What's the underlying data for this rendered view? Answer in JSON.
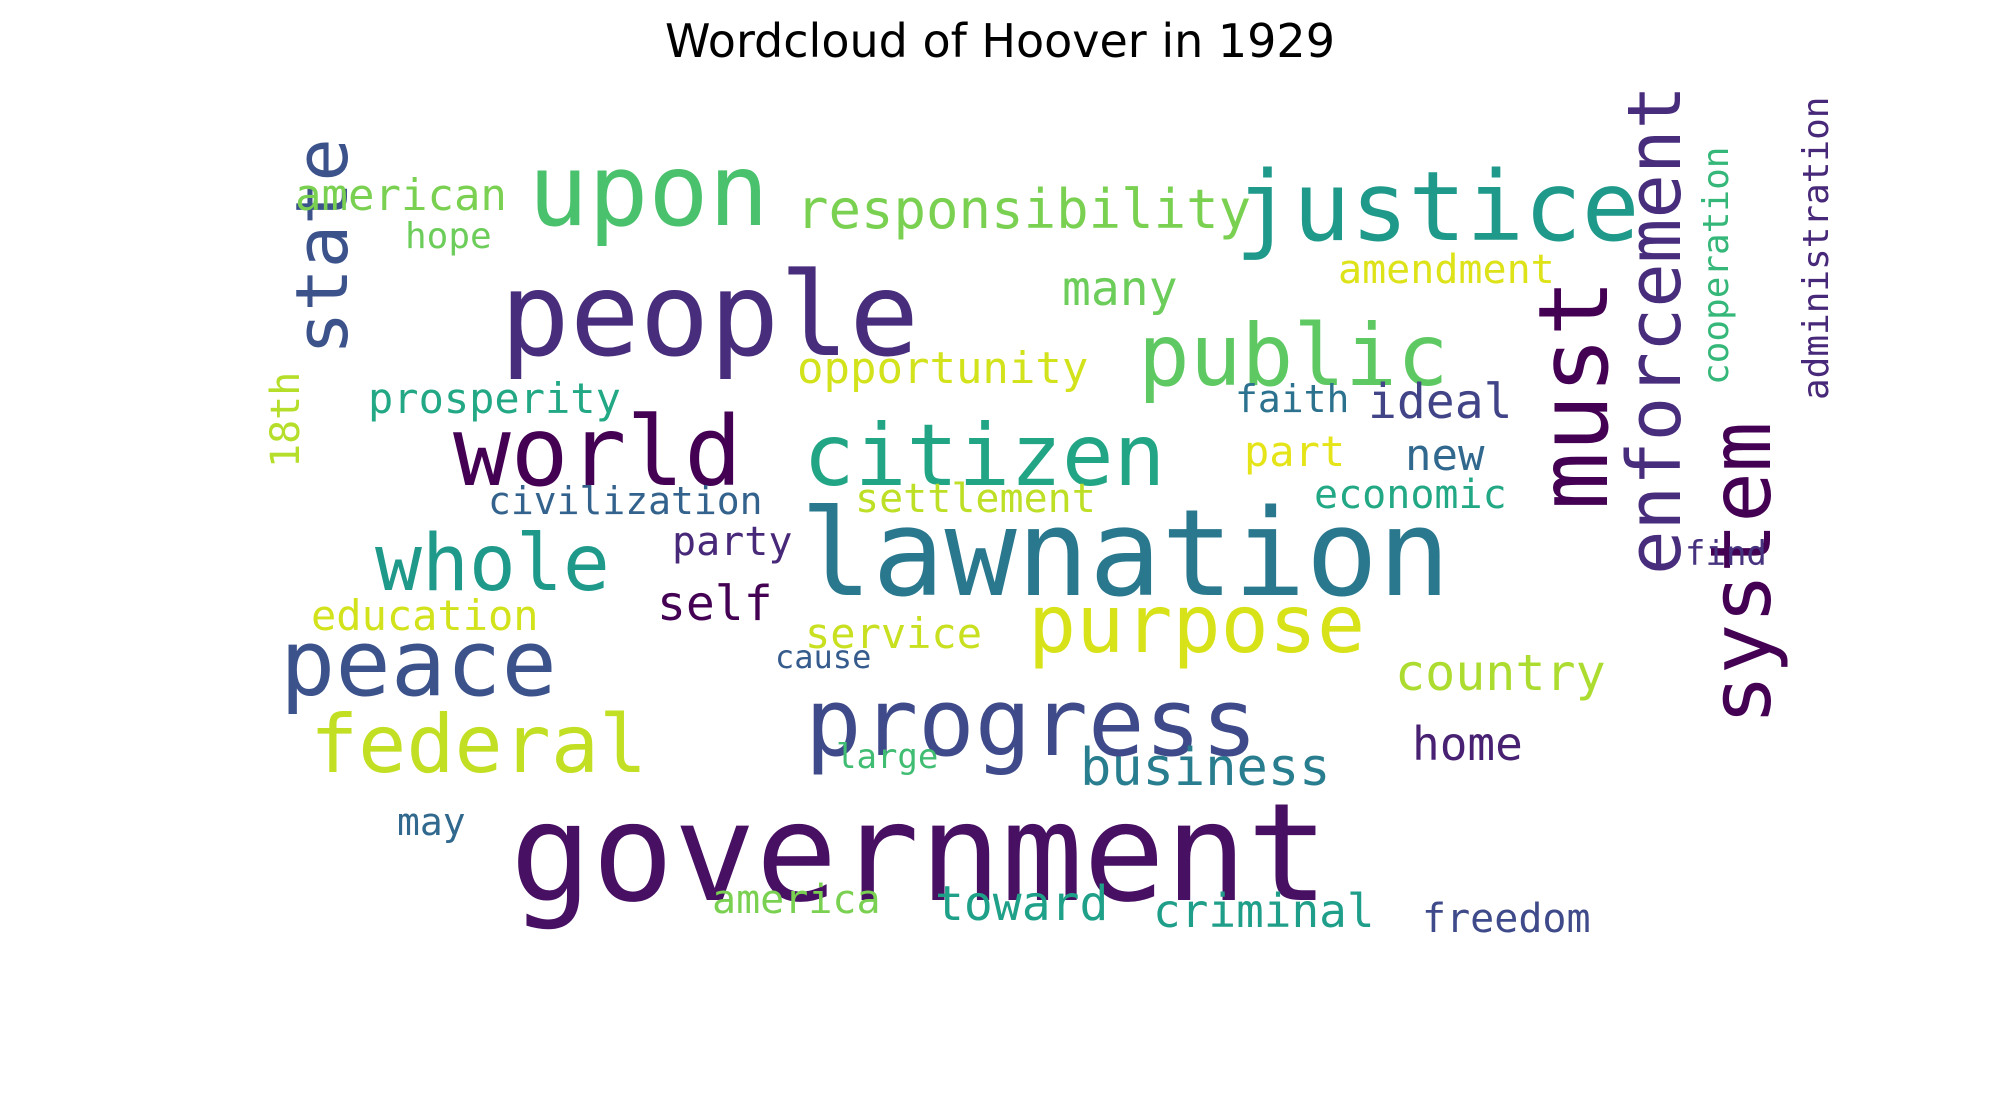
{
  "chart_data": {
    "type": "wordcloud",
    "title": "Wordcloud of Hoover in 1929",
    "words": [
      {
        "text": "government",
        "color": "#471063"
      },
      {
        "text": "lawnation",
        "color": "#2a788e"
      },
      {
        "text": "people",
        "color": "#472d7b"
      },
      {
        "text": "upon",
        "color": "#4ac16d"
      },
      {
        "text": "justice",
        "color": "#1f9a8a"
      },
      {
        "text": "progress",
        "color": "#3e4a89"
      },
      {
        "text": "world",
        "color": "#440154"
      },
      {
        "text": "citizen",
        "color": "#21a585"
      },
      {
        "text": "public",
        "color": "#5ec962"
      },
      {
        "text": "peace",
        "color": "#3b528b"
      },
      {
        "text": "must",
        "color": "#440154"
      },
      {
        "text": "purpose",
        "color": "#d8e219"
      },
      {
        "text": "enforcement",
        "color": "#472d7b"
      },
      {
        "text": "system",
        "color": "#440154"
      },
      {
        "text": "federal",
        "color": "#c2df23"
      },
      {
        "text": "whole",
        "color": "#1f9a8a"
      },
      {
        "text": "state",
        "color": "#3b528b"
      },
      {
        "text": "responsibility",
        "color": "#7ad151"
      },
      {
        "text": "business",
        "color": "#287d8e"
      },
      {
        "text": "country",
        "color": "#addc30"
      },
      {
        "text": "toward",
        "color": "#1fa088"
      },
      {
        "text": "criminal",
        "color": "#1f9e89"
      },
      {
        "text": "many",
        "color": "#6ccd5a"
      },
      {
        "text": "ideal",
        "color": "#414487"
      },
      {
        "text": "home",
        "color": "#482173"
      },
      {
        "text": "self",
        "color": "#440154"
      },
      {
        "text": "freedom",
        "color": "#3e4a89"
      },
      {
        "text": "american",
        "color": "#7ad151"
      },
      {
        "text": "opportunity",
        "color": "#d2e21b"
      },
      {
        "text": "prosperity",
        "color": "#22a884"
      },
      {
        "text": "education",
        "color": "#d2e21b"
      },
      {
        "text": "new",
        "color": "#31688e"
      },
      {
        "text": "amendment",
        "color": "#dde318"
      },
      {
        "text": "service",
        "color": "#c8e020"
      },
      {
        "text": "settlement",
        "color": "#bddf26"
      },
      {
        "text": "economic",
        "color": "#22a884"
      },
      {
        "text": "part",
        "color": "#e5e419"
      },
      {
        "text": "party",
        "color": "#482878"
      },
      {
        "text": "civilization",
        "color": "#33638d"
      },
      {
        "text": "faith",
        "color": "#2c728e"
      },
      {
        "text": "america",
        "color": "#7ad151"
      },
      {
        "text": "cooperation",
        "color": "#35b779"
      },
      {
        "text": "administration",
        "color": "#482878"
      },
      {
        "text": "18th",
        "color": "#b5de2b"
      },
      {
        "text": "may",
        "color": "#31688e"
      },
      {
        "text": "hope",
        "color": "#6ccd5a"
      },
      {
        "text": "find",
        "color": "#46327e"
      },
      {
        "text": "large",
        "color": "#40bd72"
      },
      {
        "text": "cause",
        "color": "#365c8d"
      }
    ]
  }
}
